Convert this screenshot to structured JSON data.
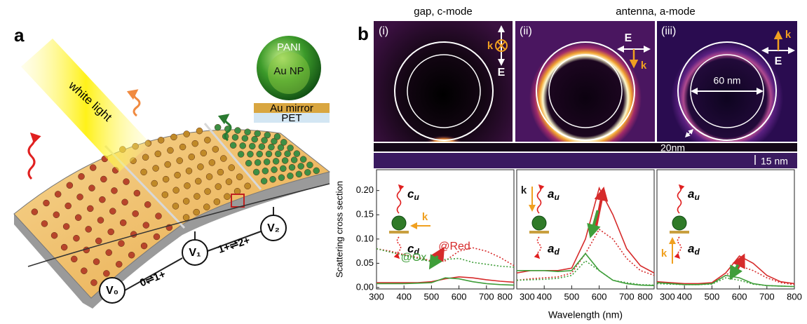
{
  "panel_a": {
    "label": "a",
    "light": "white light",
    "shell": "PANI",
    "core": "Au NP",
    "mirror": "Au mirror",
    "substrate": "PET",
    "electrodes": [
      "V₀",
      "V₁",
      "V₂"
    ],
    "transitions": [
      "0⇌1+",
      "1+⇌2+"
    ]
  },
  "panel_b": {
    "label": "b",
    "headers": [
      "gap, c-mode",
      "antenna, a-mode"
    ],
    "maps": [
      {
        "label": "(i)",
        "field": "E",
        "wavevector": "k"
      },
      {
        "label": "(ii)",
        "field": "E",
        "wavevector": "k"
      },
      {
        "label": "(iii)",
        "field": "E",
        "wavevector": "k"
      }
    ],
    "dims": [
      "60 nm",
      "20nm",
      "15 nm"
    ]
  },
  "chart_data": [
    {
      "type": "line",
      "x": [
        300,
        350,
        400,
        450,
        500,
        550,
        600,
        650,
        700,
        750,
        800
      ],
      "xlim": [
        300,
        800
      ],
      "xticks": [
        300,
        400,
        500,
        600,
        700,
        800
      ],
      "ylim": [
        0,
        0.24
      ],
      "yticks": [
        {
          "value": 0,
          "label": "0.00"
        },
        {
          "value": 0.05,
          "label": "0.05"
        },
        {
          "value": 0.1,
          "label": "0.10"
        },
        {
          "value": 0.15,
          "label": "0.15"
        },
        {
          "value": 0.2,
          "label": "0.20"
        }
      ],
      "y_label": "Scattering cross section",
      "series": [
        {
          "color": "#d62b2b",
          "dash": "dotted",
          "values": [
            0.08,
            0.075,
            0.068,
            0.062,
            0.055,
            0.055,
            0.075,
            0.082,
            0.075,
            0.062,
            0.045
          ]
        },
        {
          "color": "#3f9e3a",
          "dash": "dotted",
          "values": [
            0.08,
            0.073,
            0.066,
            0.06,
            0.053,
            0.058,
            0.06,
            0.052,
            0.048,
            0.044,
            0.042
          ]
        },
        {
          "color": "#d62b2b",
          "dash": "solid",
          "values": [
            0.01,
            0.01,
            0.01,
            0.01,
            0.012,
            0.018,
            0.022,
            0.02,
            0.016,
            0.013,
            0.011
          ]
        },
        {
          "color": "#3f9e3a",
          "dash": "solid",
          "values": [
            0.008,
            0.008,
            0.008,
            0.009,
            0.01,
            0.02,
            0.018,
            0.012,
            0.008,
            0.006,
            0.005
          ]
        }
      ],
      "insets": [
        {
          "symbol": "c",
          "sub": "u"
        },
        {
          "symbol": "c",
          "sub": "d"
        }
      ],
      "incident": "k",
      "annotations": [
        {
          "text": "@Red",
          "color": "#d62b2b"
        },
        {
          "text": "@Ox",
          "color": "#3f9e3a"
        }
      ]
    },
    {
      "type": "line",
      "x": [
        300,
        350,
        400,
        450,
        500,
        550,
        600,
        650,
        700,
        750,
        800
      ],
      "xlim": [
        300,
        800
      ],
      "xticks": [
        300,
        400,
        500,
        600,
        700,
        800
      ],
      "ylim": [
        0,
        0.24
      ],
      "x_label": "Wavelength (nm)",
      "series": [
        {
          "color": "#d62b2b",
          "dash": "solid",
          "values": [
            0.03,
            0.035,
            0.035,
            0.035,
            0.04,
            0.1,
            0.205,
            0.15,
            0.08,
            0.045,
            0.03
          ]
        },
        {
          "color": "#d62b2b",
          "dash": "dotted",
          "values": [
            0.015,
            0.018,
            0.02,
            0.022,
            0.03,
            0.07,
            0.12,
            0.1,
            0.06,
            0.035,
            0.025
          ]
        },
        {
          "color": "#3f9e3a",
          "dash": "solid",
          "values": [
            0.035,
            0.035,
            0.035,
            0.033,
            0.035,
            0.07,
            0.035,
            0.015,
            0.008,
            0.005,
            0.004
          ]
        },
        {
          "color": "#3f9e3a",
          "dash": "dotted",
          "values": [
            0.015,
            0.016,
            0.017,
            0.019,
            0.025,
            0.055,
            0.035,
            0.015,
            0.01,
            0.006,
            0.005
          ]
        }
      ],
      "insets": [
        {
          "symbol": "a",
          "sub": "u"
        },
        {
          "symbol": "a",
          "sub": "d"
        }
      ],
      "incident": "k"
    },
    {
      "type": "line",
      "x": [
        300,
        350,
        400,
        450,
        500,
        550,
        600,
        650,
        700,
        750,
        800
      ],
      "xlim": [
        300,
        800
      ],
      "xticks": [
        300,
        400,
        500,
        600,
        700,
        800
      ],
      "ylim": [
        0,
        0.24
      ],
      "series": [
        {
          "color": "#d62b2b",
          "dash": "solid",
          "values": [
            0.012,
            0.01,
            0.008,
            0.008,
            0.01,
            0.03,
            0.065,
            0.05,
            0.025,
            0.012,
            0.008
          ]
        },
        {
          "color": "#d62b2b",
          "dash": "dotted",
          "values": [
            0.01,
            0.009,
            0.007,
            0.007,
            0.009,
            0.025,
            0.045,
            0.035,
            0.02,
            0.01,
            0.006
          ]
        },
        {
          "color": "#3f9e3a",
          "dash": "solid",
          "values": [
            0.01,
            0.008,
            0.006,
            0.006,
            0.008,
            0.025,
            0.02,
            0.008,
            0.004,
            0.003,
            0.002
          ]
        },
        {
          "color": "#3f9e3a",
          "dash": "dotted",
          "values": [
            0.008,
            0.007,
            0.006,
            0.006,
            0.007,
            0.02,
            0.015,
            0.007,
            0.004,
            0.003,
            0.002
          ]
        }
      ],
      "insets": [
        {
          "symbol": "a",
          "sub": "u"
        },
        {
          "symbol": "a",
          "sub": "d"
        }
      ],
      "incident": "k"
    }
  ]
}
